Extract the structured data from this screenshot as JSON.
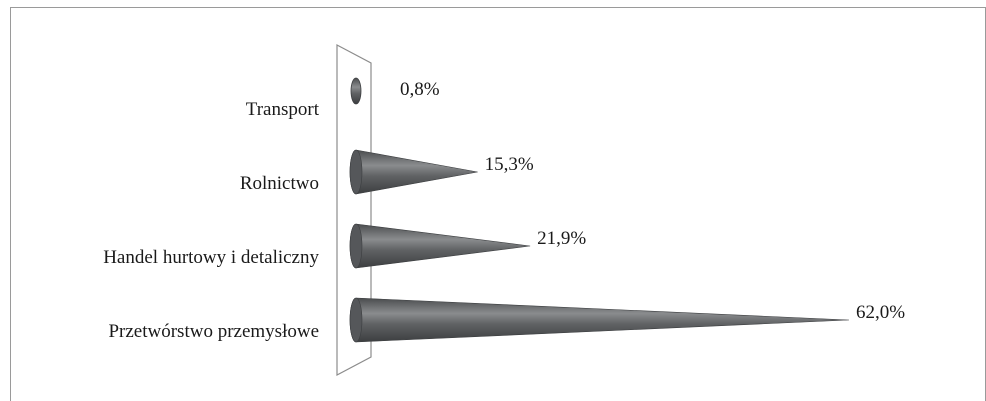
{
  "chart_data": {
    "type": "bar",
    "style": "horizontal cone bars (3D)",
    "title": "",
    "xlabel": "",
    "ylabel": "",
    "categories": [
      "Transport",
      "Rolnictwo",
      "Handel hurtowy i detaliczny",
      "Przetwórstwo przemysłowe"
    ],
    "values": [
      0.8,
      15.3,
      21.9,
      62.0
    ],
    "value_labels": [
      "0,8%",
      "15,3%",
      "21,9%",
      "62,0%"
    ],
    "unit": "%",
    "xlim": [
      0,
      62
    ],
    "grid": false,
    "legend": "none",
    "colors": {
      "bar": "#5f6163",
      "bar_highlight": "#8a8c8e",
      "wall_stroke": "#8c8c8c",
      "frame": "#9a9a9a",
      "text": "#1a1a1a"
    }
  }
}
